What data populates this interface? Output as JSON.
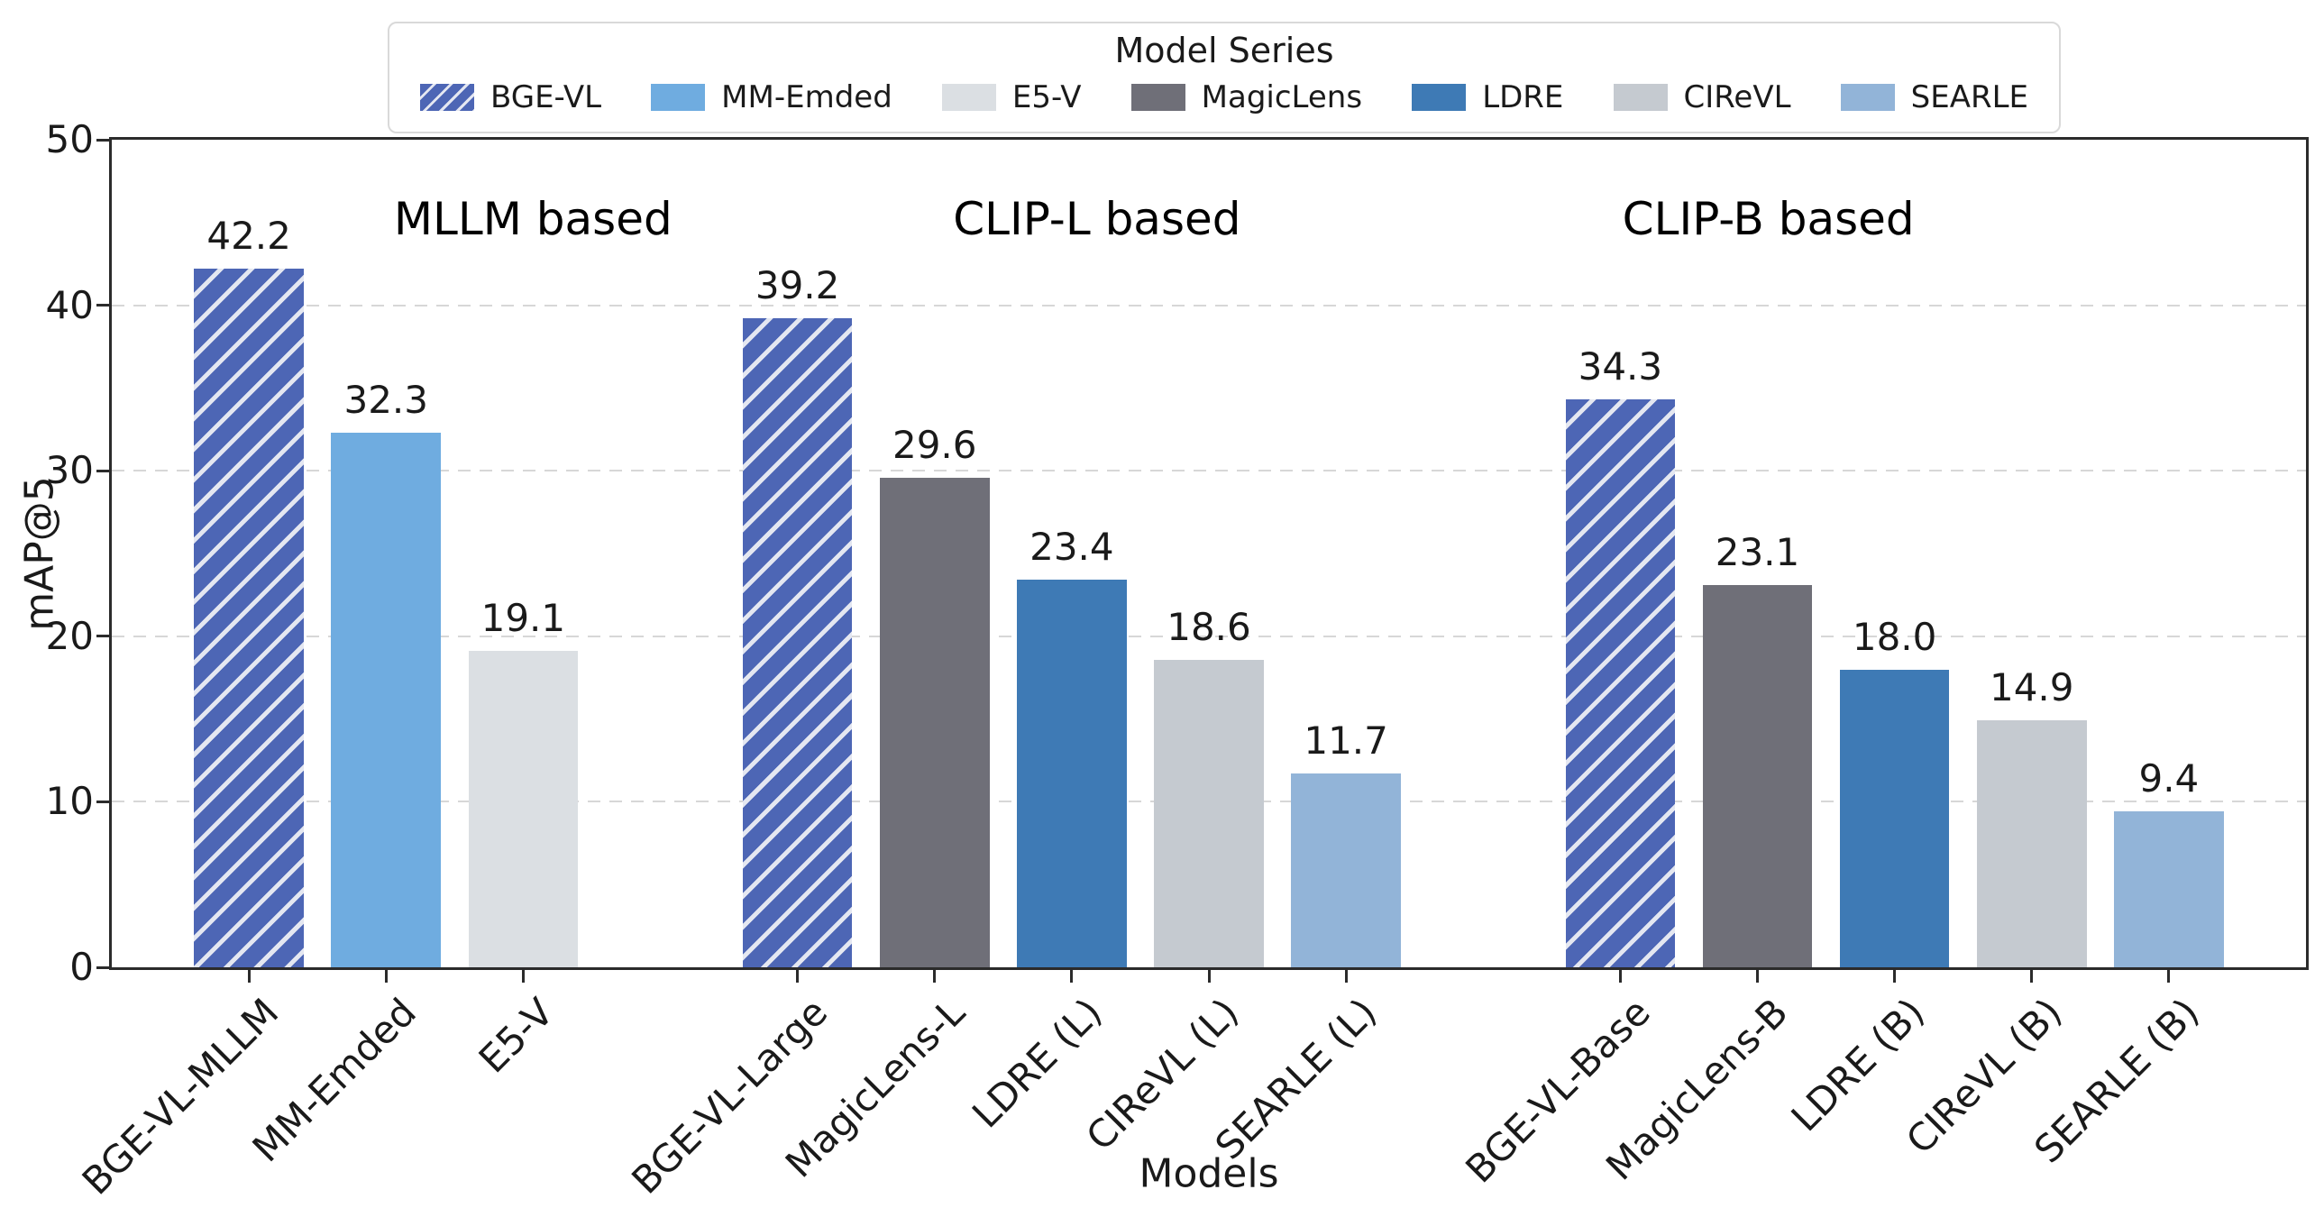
{
  "figure": {
    "background": "#ffffff"
  },
  "chart_data": {
    "type": "bar",
    "title": "",
    "xlabel": "Models",
    "ylabel": "mAP@5",
    "ylim": [
      0,
      50
    ],
    "yticks": [
      0,
      10,
      20,
      30,
      40,
      50
    ],
    "grid": {
      "axis": "y",
      "style": "dashed",
      "color": "#d7d7d7"
    },
    "legend": {
      "title": "Model Series",
      "position": "top-center",
      "entries": [
        {
          "label": "BGE-VL",
          "series": "BGE-VL"
        },
        {
          "label": "MM-Emded",
          "series": "MM-Emded"
        },
        {
          "label": "E5-V",
          "series": "E5-V"
        },
        {
          "label": "MagicLens",
          "series": "MagicLens"
        },
        {
          "label": "LDRE",
          "series": "LDRE"
        },
        {
          "label": "CIReVL",
          "series": "CIReVL"
        },
        {
          "label": "SEARLE",
          "series": "SEARLE"
        }
      ]
    },
    "series_styles": {
      "BGE-VL": {
        "color": "#4d66b5",
        "hatch": true,
        "hatch_color": "#e4e7f1"
      },
      "MM-Emded": {
        "color": "#6face0",
        "hatch": false
      },
      "E5-V": {
        "color": "#dbdfe3",
        "hatch": false
      },
      "MagicLens": {
        "color": "#6f6f78",
        "hatch": false
      },
      "LDRE": {
        "color": "#3e7ab5",
        "hatch": false
      },
      "CIReVL": {
        "color": "#c5cad0",
        "hatch": false
      },
      "SEARLE": {
        "color": "#92b4d8",
        "hatch": false
      }
    },
    "value_label_decimals": 1,
    "groups": [
      {
        "title": "MLLM based",
        "title_x_frac": 0.192,
        "bars": [
          {
            "label": "BGE-VL-MLLM",
            "series": "BGE-VL",
            "value": 42.2
          },
          {
            "label": "MM-Emded",
            "series": "MM-Emded",
            "value": 32.3
          },
          {
            "label": "E5-V",
            "series": "E5-V",
            "value": 19.1
          }
        ]
      },
      {
        "title": "CLIP-L based",
        "title_x_frac": 0.449,
        "bars": [
          {
            "label": "BGE-VL-Large",
            "series": "BGE-VL",
            "value": 39.2
          },
          {
            "label": "MagicLens-L",
            "series": "MagicLens",
            "value": 29.6
          },
          {
            "label": "LDRE (L)",
            "series": "LDRE",
            "value": 23.4
          },
          {
            "label": "CIReVL (L)",
            "series": "CIReVL",
            "value": 18.6
          },
          {
            "label": "SEARLE (L)",
            "series": "SEARLE",
            "value": 11.7
          }
        ]
      },
      {
        "title": "CLIP-B based",
        "title_x_frac": 0.755,
        "bars": [
          {
            "label": "BGE-VL-Base",
            "series": "BGE-VL",
            "value": 34.3
          },
          {
            "label": "MagicLens-B",
            "series": "MagicLens",
            "value": 23.1
          },
          {
            "label": "LDRE (B)",
            "series": "LDRE",
            "value": 18.0
          },
          {
            "label": "CIReVL (B)",
            "series": "CIReVL",
            "value": 14.9
          },
          {
            "label": "SEARLE (B)",
            "series": "SEARLE",
            "value": 9.4
          }
        ]
      }
    ]
  }
}
